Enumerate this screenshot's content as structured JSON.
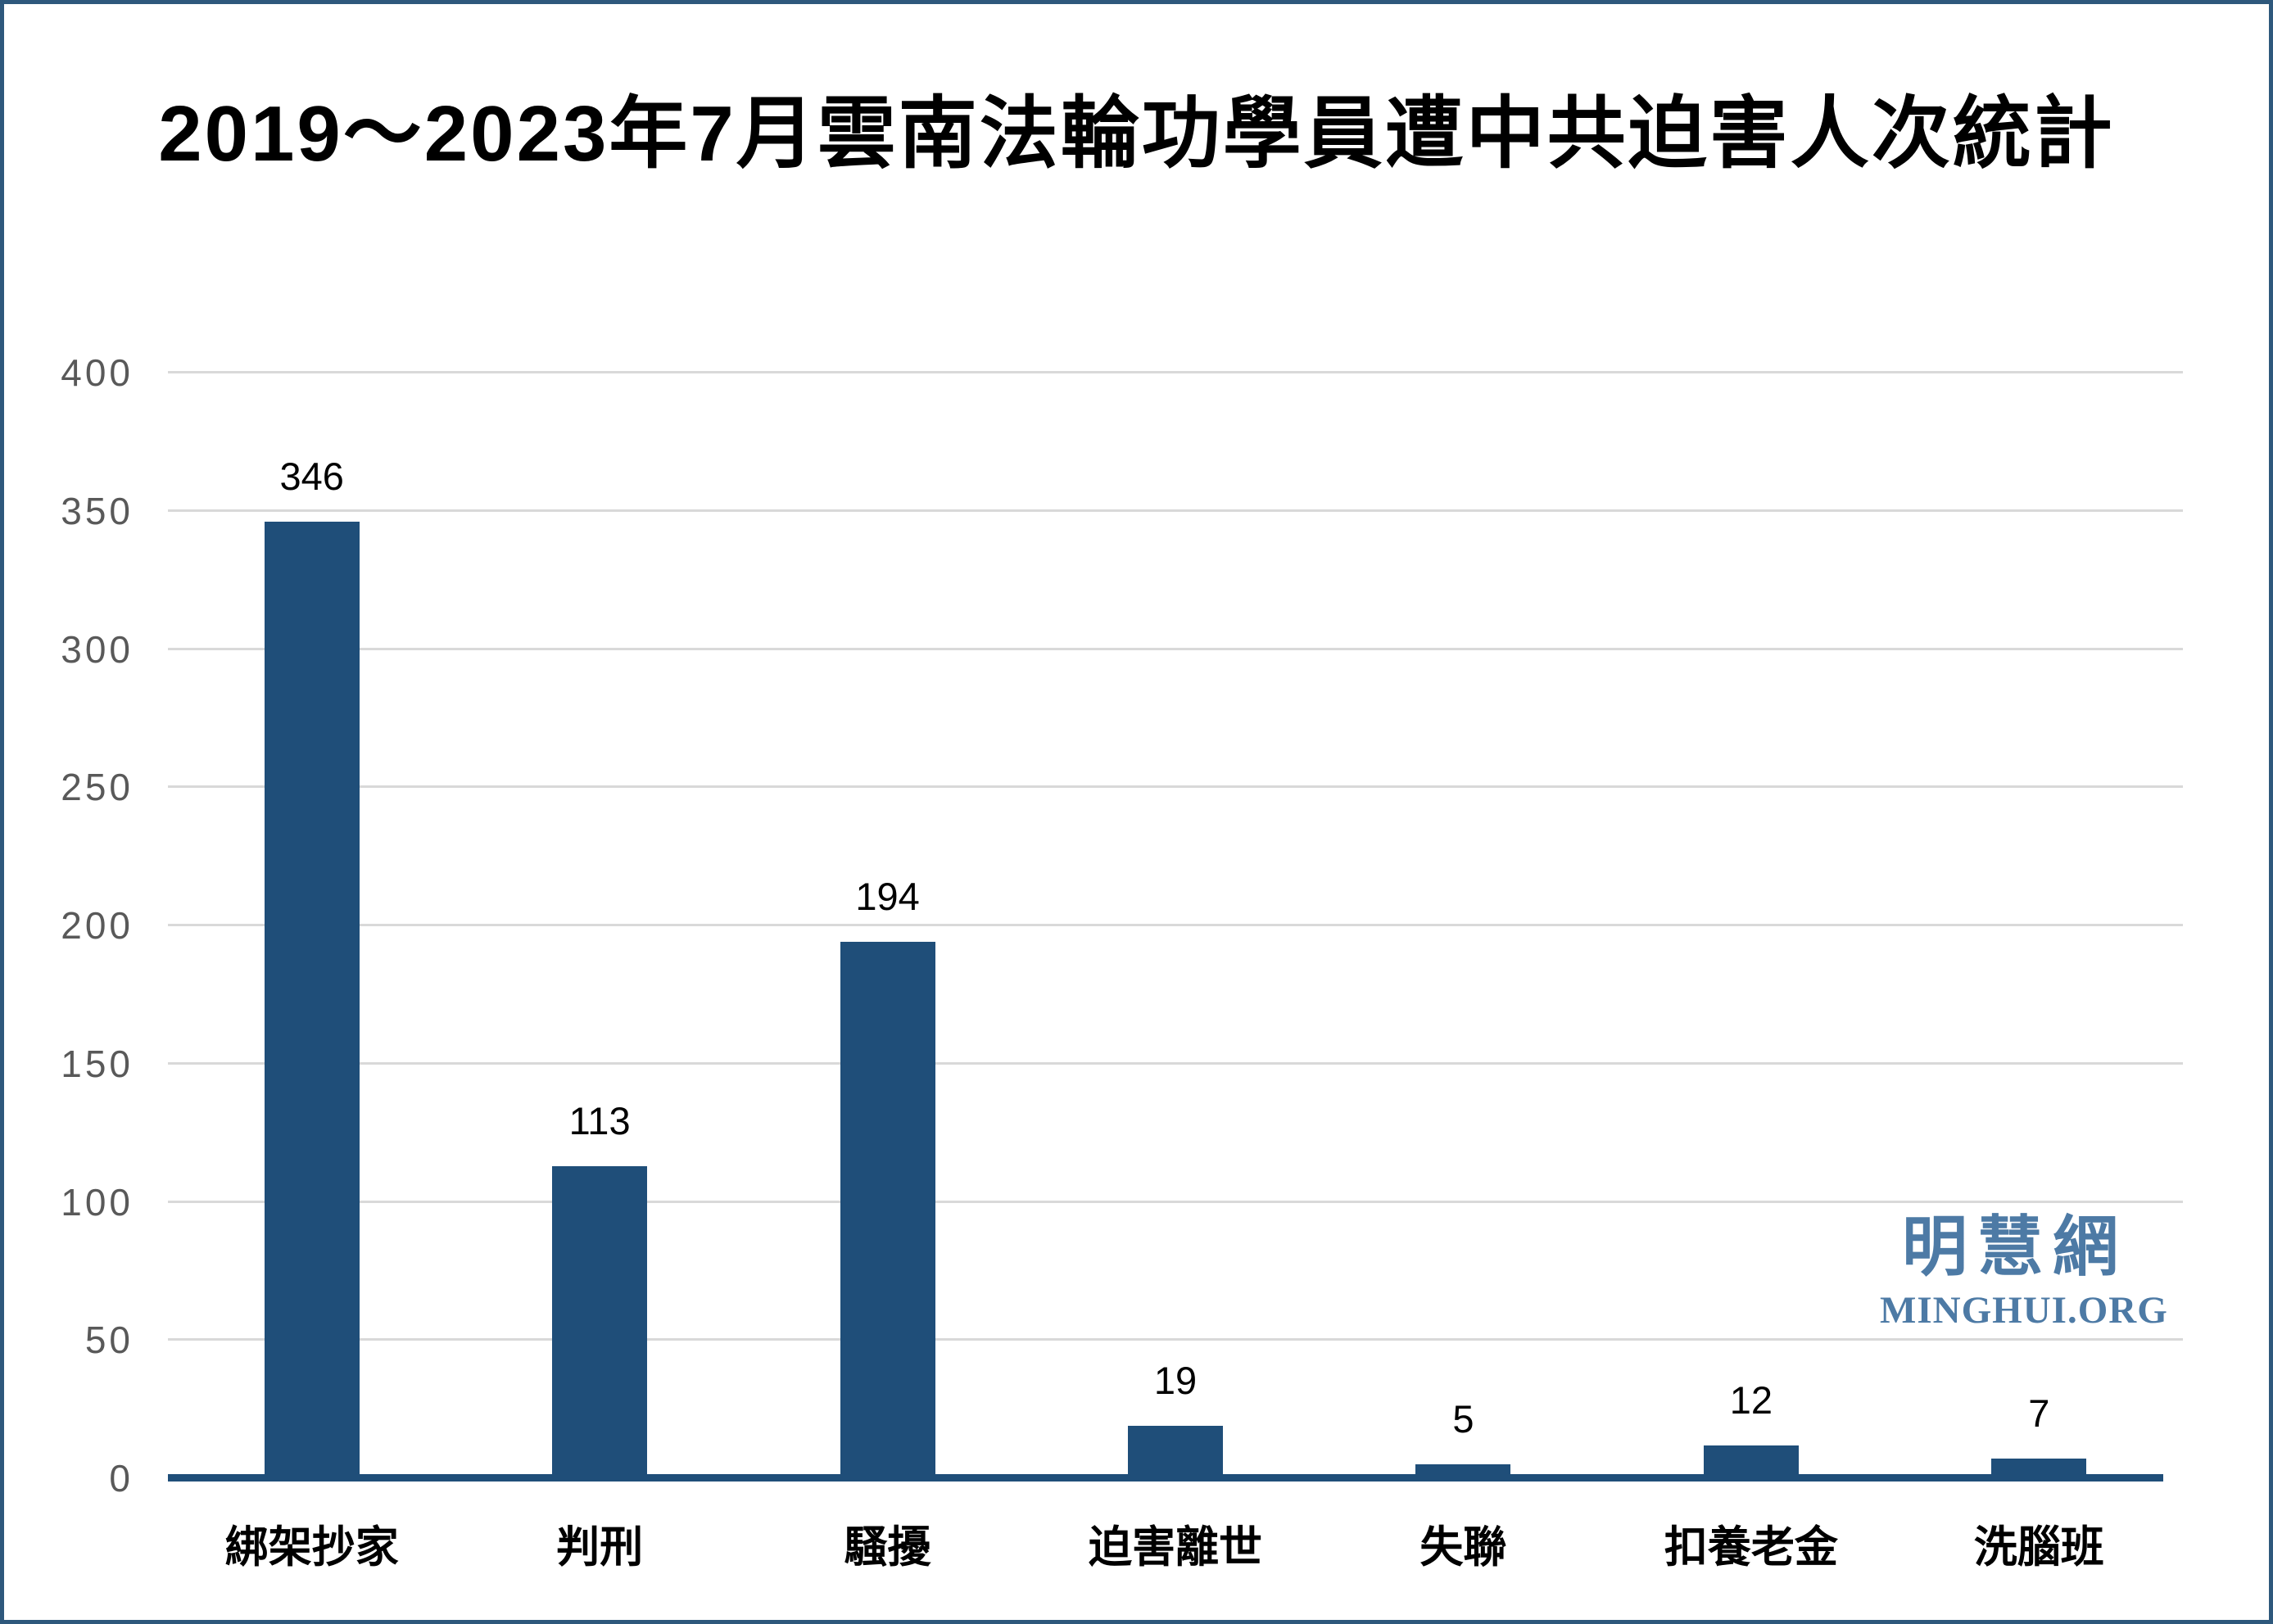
{
  "page": {
    "background": "#ffffff",
    "border_color": "#2e587c"
  },
  "watermark": {
    "cjk": "明慧網",
    "latin": "MINGHUI.ORG",
    "color": "#4d7aa5"
  },
  "chart_data": {
    "type": "bar",
    "title": "2019～2023年7月雲南法輪功學員遭中共迫害人次統計",
    "categories": [
      "綁架抄家",
      "判刑",
      "騷擾",
      "迫害離世",
      "失聯",
      "扣養老金",
      "洗腦班"
    ],
    "values": [
      346,
      113,
      194,
      19,
      5,
      12,
      7
    ],
    "xlabel": "",
    "ylabel": "",
    "ylim": [
      0,
      400
    ],
    "ytick_step": 50,
    "yticks": [
      0,
      50,
      100,
      150,
      200,
      250,
      300,
      350,
      400
    ],
    "grid": true,
    "legend": "none",
    "bar_color": "#1f4e79",
    "axis_line_color": "#1f4e79",
    "gridline_color": "#d9d9d9",
    "tick_label_color": "#595959",
    "data_label_color": "#000000"
  }
}
